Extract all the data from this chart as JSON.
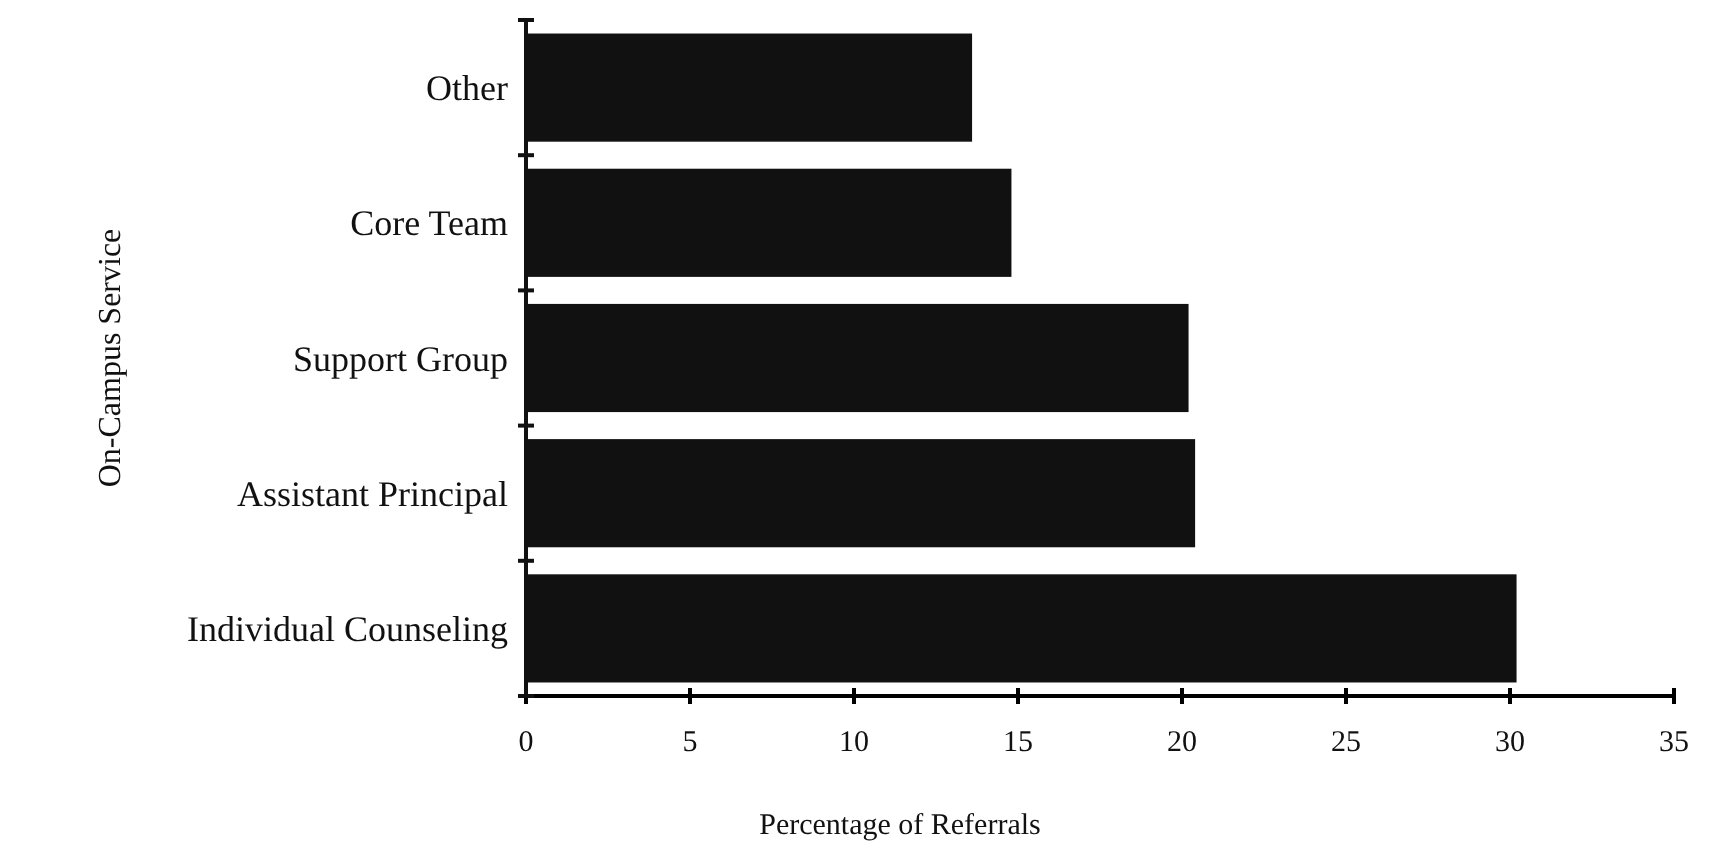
{
  "chart_data": {
    "type": "bar",
    "orientation": "horizontal",
    "xlabel": "Percentage of Referrals",
    "ylabel": "On-Campus Service",
    "categories": [
      "Other",
      "Core Team",
      "Support Group",
      "Assistant Principal",
      "Individual Counseling"
    ],
    "values": [
      13.6,
      14.8,
      20.2,
      20.4,
      30.2
    ],
    "color": "#111111",
    "xlim": [
      0,
      35
    ],
    "xticks": [
      0,
      5,
      10,
      15,
      20,
      25,
      30,
      35
    ],
    "grid": false
  }
}
